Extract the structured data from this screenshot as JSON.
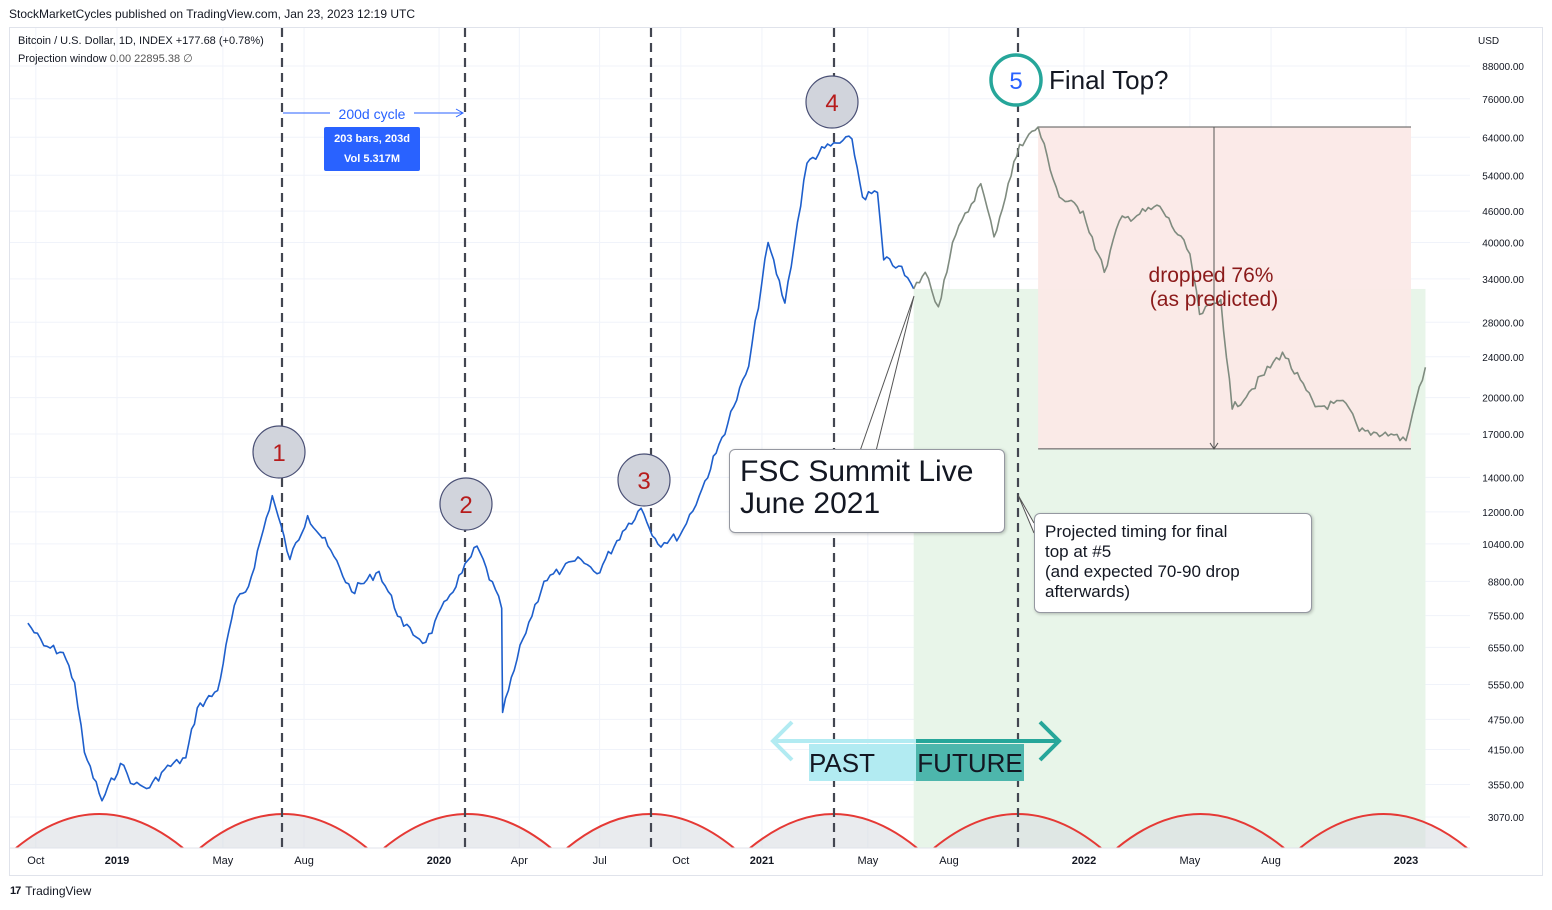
{
  "publisher_line": "StockMarketCycles published on TradingView.com, Jan 23, 2023 12:19 UTC",
  "legend": {
    "symbol_line": "Bitcoin / U.S. Dollar, 1D, INDEX",
    "change": "+177.68 (+0.78%)",
    "projection_label": "Projection window",
    "projection_values": "0.00  22895.38  ∅"
  },
  "footer_brand": "TradingView",
  "footer_logo": "17",
  "currency": "USD",
  "measure": {
    "label": "200d cycle",
    "bars": "203 bars, 203d",
    "vol": "Vol 5.317M"
  },
  "cycle_markers": [
    {
      "label": "1"
    },
    {
      "label": "2"
    },
    {
      "label": "3"
    },
    {
      "label": "4"
    },
    {
      "label": "5"
    }
  ],
  "final_top_text": "Final Top?",
  "drop_text": [
    "dropped 76%",
    "(as predicted)"
  ],
  "callout_fsc": [
    "FSC Summit Live",
    "June 2021"
  ],
  "callout_projection": [
    "Projected timing for final",
    "top at #5",
    "(and expected 70-90 drop",
    "afterwards)"
  ],
  "past_label": "PAST",
  "future_label": "FUTURE",
  "colors": {
    "price_line": "#1e5fcc",
    "projection_line": "#7f8b7f",
    "cycle_arc": "#e53935",
    "marker_fill": "#d1d4dc",
    "marker_text": "#b71c1c",
    "marker5_ring": "#26a69a",
    "marker5_text": "#2962ff",
    "future_zone": "#e8f5e9",
    "drop_zone": "#fbe9e7",
    "past_box": "#b2ebf2",
    "future_box": "#4db6ac",
    "drop_text": "#8b1a1a"
  },
  "chart_data": {
    "type": "line",
    "title": "Bitcoin / U.S. Dollar, 1D, INDEX",
    "scale": "log",
    "currency": "USD",
    "x_ticks": [
      "Oct",
      "2019",
      "May",
      "Aug",
      "2020",
      "Apr",
      "Jul",
      "Oct",
      "2021",
      "May",
      "Aug",
      "2022",
      "May",
      "Aug",
      "2023"
    ],
    "y_ticks": [
      88000,
      76000,
      64000,
      54000,
      46000,
      40000,
      34000,
      28000,
      24000,
      20000,
      17000,
      14000,
      12000,
      10400,
      8800,
      7550,
      6550,
      5550,
      4750,
      4150,
      3550,
      3070
    ],
    "ylim": [
      2700,
      100000
    ],
    "series": [
      {
        "role": "price",
        "x": [
          "2018-09-22",
          "2018-10-10",
          "2018-11-01",
          "2018-11-14",
          "2018-11-25",
          "2018-12-15",
          "2019-01-05",
          "2019-01-20",
          "2019-02-07",
          "2019-02-24",
          "2019-03-20",
          "2019-04-02",
          "2019-04-25",
          "2019-05-14",
          "2019-05-30",
          "2019-06-26",
          "2019-07-16",
          "2019-08-05",
          "2019-08-28",
          "2019-09-24",
          "2019-10-25",
          "2019-11-22",
          "2019-12-17",
          "2020-01-10",
          "2020-02-13",
          "2020-03-12",
          "2020-03-13",
          "2020-04-05",
          "2020-04-29",
          "2020-05-20",
          "2020-06-10",
          "2020-06-28",
          "2020-07-27",
          "2020-08-17",
          "2020-09-05",
          "2020-09-30",
          "2020-10-22",
          "2020-11-10",
          "2020-11-30",
          "2020-12-17",
          "2021-01-08",
          "2021-01-27",
          "2021-02-21",
          "2021-03-13",
          "2021-04-13",
          "2021-04-25",
          "2021-05-12",
          "2021-05-19",
          "2021-06-05",
          "2021-06-22"
        ],
        "y": [
          7300,
          6600,
          6400,
          5600,
          4100,
          3300,
          3900,
          3550,
          3500,
          3800,
          4000,
          5000,
          5400,
          7900,
          8600,
          12900,
          9700,
          11800,
          10300,
          8400,
          9200,
          7200,
          6700,
          8100,
          10300,
          7800,
          4900,
          6800,
          8800,
          9300,
          9700,
          9100,
          11000,
          12200,
          10400,
          10800,
          12900,
          15600,
          19200,
          23000,
          40000,
          30500,
          57000,
          61000,
          63500,
          49000,
          50000,
          37000,
          36000,
          32500
        ]
      },
      {
        "role": "projection",
        "x": [
          "2021-06-22",
          "2021-07-05",
          "2021-07-20",
          "2021-08-05",
          "2021-09-06",
          "2021-09-21",
          "2021-10-20",
          "2021-11-10",
          "2021-12-04",
          "2021-12-31",
          "2022-01-24",
          "2022-02-10",
          "2022-03-28",
          "2022-05-01",
          "2022-05-12",
          "2022-06-05",
          "2022-06-18",
          "2022-07-07",
          "2022-08-14",
          "2022-09-20",
          "2022-10-25",
          "2022-11-09",
          "2022-12-15",
          "2023-01-01",
          "2023-01-16",
          "2023-01-23"
        ],
        "y": [
          32500,
          35000,
          30000,
          40000,
          52000,
          41000,
          62000,
          67000,
          49000,
          46000,
          35000,
          44000,
          47000,
          38000,
          29000,
          31000,
          19000,
          20500,
          24500,
          19200,
          19500,
          17200,
          17000,
          16500,
          21000,
          22900
        ]
      }
    ],
    "annotations": [
      "200d cycle",
      "203 bars, 203d",
      "Vol 5.317M",
      "1",
      "2",
      "3",
      "4",
      "5",
      "Final Top?",
      "dropped 76%",
      "(as predicted)",
      "FSC Summit Live",
      "June 2021",
      "Projected timing for final top at #5 (and expected 70-90 drop afterwards)",
      "PAST",
      "FUTURE"
    ]
  }
}
